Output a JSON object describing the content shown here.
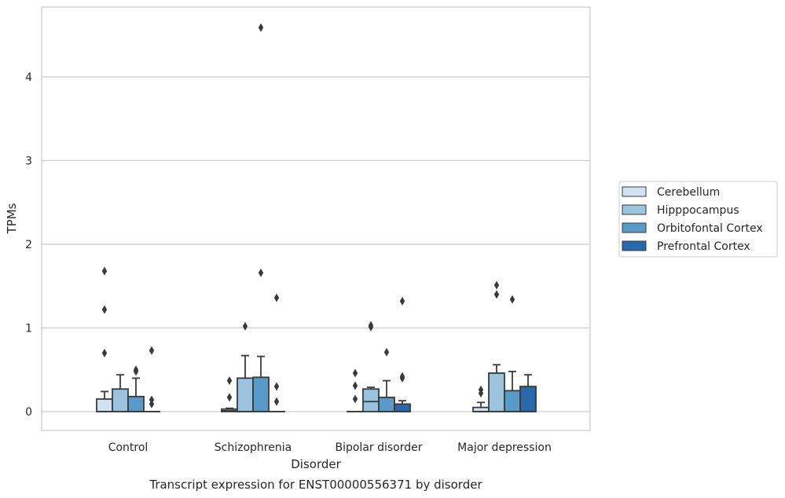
{
  "chart_data": {
    "type": "box",
    "title": "Transcript expression for ENST00000556371 by disorder",
    "xlabel": "Disorder",
    "ylabel": "TPMs",
    "ylim": [
      -0.22,
      4.82
    ],
    "yticks": [
      0,
      1,
      2,
      3,
      4
    ],
    "grid": "horizontal",
    "legend_position": "right",
    "categories": [
      "Control",
      "Schizophrenia",
      "Bipolar disorder",
      "Major depression"
    ],
    "series": [
      {
        "name": "Cerebellum",
        "color": "#d0e1f2",
        "boxes": [
          {
            "q1": 0.0,
            "median": 0.0,
            "q3": 0.15,
            "whisker_low": 0.0,
            "whisker_high": 0.24,
            "outliers": [
              0.7,
              1.22,
              1.68
            ]
          },
          {
            "q1": 0.0,
            "median": 0.01,
            "q3": 0.03,
            "whisker_low": 0.0,
            "whisker_high": 0.04,
            "outliers": [
              0.17,
              0.37
            ]
          },
          {
            "q1": 0.0,
            "median": 0.0,
            "q3": 0.0,
            "whisker_low": 0.0,
            "whisker_high": 0.0,
            "outliers": [
              0.15,
              0.31,
              0.46
            ]
          },
          {
            "q1": 0.0,
            "median": 0.0,
            "q3": 0.05,
            "whisker_low": 0.0,
            "whisker_high": 0.11,
            "outliers": [
              0.22,
              0.26
            ]
          }
        ]
      },
      {
        "name": "Hipppocampus",
        "color": "#9ac3de",
        "boxes": [
          {
            "q1": 0.0,
            "median": 0.0,
            "q3": 0.27,
            "whisker_low": 0.0,
            "whisker_high": 0.44,
            "outliers": []
          },
          {
            "q1": 0.0,
            "median": 0.0,
            "q3": 0.4,
            "whisker_low": 0.0,
            "whisker_high": 0.67,
            "outliers": [
              1.02
            ]
          },
          {
            "q1": 0.0,
            "median": 0.12,
            "q3": 0.27,
            "whisker_low": 0.0,
            "whisker_high": 0.29,
            "outliers": [
              1.01,
              1.03
            ]
          },
          {
            "q1": 0.0,
            "median": 0.0,
            "q3": 0.46,
            "whisker_low": 0.0,
            "whisker_high": 0.56,
            "outliers": [
              1.4,
              1.51
            ]
          }
        ]
      },
      {
        "name": "Orbitofontal Cortex",
        "color": "#5a9ac8",
        "boxes": [
          {
            "q1": 0.0,
            "median": 0.0,
            "q3": 0.18,
            "whisker_low": 0.0,
            "whisker_high": 0.4,
            "outliers": [
              0.48,
              0.5
            ]
          },
          {
            "q1": 0.0,
            "median": 0.0,
            "q3": 0.41,
            "whisker_low": 0.0,
            "whisker_high": 0.66,
            "outliers": [
              1.66,
              4.59
            ]
          },
          {
            "q1": 0.0,
            "median": 0.0,
            "q3": 0.17,
            "whisker_low": 0.0,
            "whisker_high": 0.37,
            "outliers": [
              0.71
            ]
          },
          {
            "q1": 0.0,
            "median": 0.0,
            "q3": 0.25,
            "whisker_low": 0.0,
            "whisker_high": 0.48,
            "outliers": [
              1.34
            ]
          }
        ]
      },
      {
        "name": "Prefrontal Cortex",
        "color": "#2a68ac",
        "boxes": [
          {
            "q1": 0.0,
            "median": 0.0,
            "q3": 0.0,
            "whisker_low": 0.0,
            "whisker_high": 0.0,
            "outliers": [
              0.09,
              0.14,
              0.73
            ]
          },
          {
            "q1": 0.0,
            "median": 0.0,
            "q3": 0.0,
            "whisker_low": 0.0,
            "whisker_high": 0.0,
            "outliers": [
              0.12,
              0.3,
              1.36
            ]
          },
          {
            "q1": 0.0,
            "median": 0.0,
            "q3": 0.09,
            "whisker_low": 0.0,
            "whisker_high": 0.13,
            "outliers": [
              0.4,
              0.42,
              1.32
            ]
          },
          {
            "q1": 0.0,
            "median": 0.0,
            "q3": 0.3,
            "whisker_low": 0.0,
            "whisker_high": 0.44,
            "outliers": []
          }
        ]
      }
    ]
  }
}
